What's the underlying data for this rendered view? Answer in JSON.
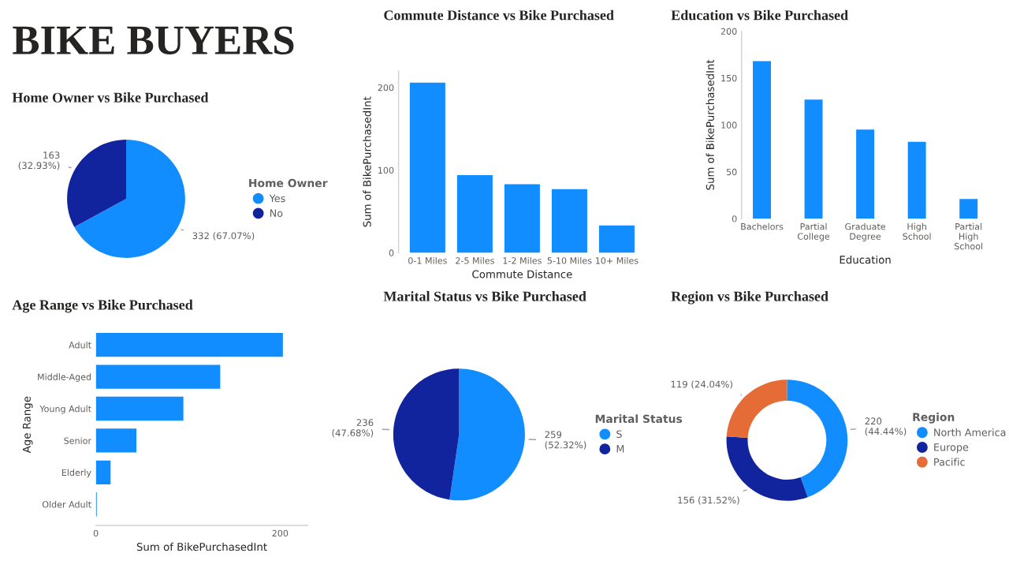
{
  "chart_data": [
    {
      "type": "other",
      "title": "BIKE BUYERS"
    },
    {
      "type": "pie",
      "title": "Home Owner vs Bike Purchased",
      "legend_title": "Home Owner",
      "legend": "right",
      "categories": [
        "Yes",
        "No"
      ],
      "values": [
        332,
        163
      ],
      "colors": [
        "#118dff",
        "#12239e"
      ],
      "value_labels": [
        "332 (67.07%)",
        "163\n(32.93%)"
      ]
    },
    {
      "type": "bar",
      "title": "Commute Distance vs Bike Purchased",
      "xlabel": "Commute Distance",
      "ylabel": "Sum of BikePurchasedInt",
      "categories": [
        "0-1 Miles",
        "2-5 Miles",
        "1-2 Miles",
        "5-10 Miles",
        "10+ Miles"
      ],
      "values": [
        206,
        94,
        83,
        77,
        33
      ],
      "color": "#118dff",
      "ylim": [
        0,
        220
      ],
      "yticks": [
        0,
        100,
        200
      ],
      "grid": false
    },
    {
      "type": "bar",
      "title": "Education vs Bike Purchased",
      "xlabel": "Education",
      "ylabel": "Sum of BikePurchasedInt",
      "categories": [
        "Bachelors",
        "Partial\nCollege",
        "Graduate\nDegree",
        "High\nSchool",
        "Partial\nHigh\nSchool"
      ],
      "values": [
        168,
        127,
        95,
        82,
        21
      ],
      "color": "#118dff",
      "ylim": [
        0,
        200
      ],
      "yticks": [
        0,
        50,
        100,
        150,
        200
      ],
      "grid": false
    },
    {
      "type": "bar",
      "orientation": "horizontal",
      "title": "Age Range vs Bike Purchased",
      "xlabel": "Sum of BikePurchasedInt",
      "ylabel": "Age Range",
      "categories": [
        "Adult",
        "Middle-Aged",
        "Young Adult",
        "Senior",
        "Elderly",
        "Older Adult"
      ],
      "values": [
        203,
        135,
        95,
        44,
        16,
        1
      ],
      "color": "#118dff",
      "xlim": [
        0,
        230
      ],
      "xticks": [
        0,
        200
      ],
      "grid": false
    },
    {
      "type": "pie",
      "title": "Marital Status vs Bike Purchased",
      "legend_title": "Marital Status",
      "legend": "right",
      "categories": [
        "S",
        "M"
      ],
      "values": [
        259,
        236
      ],
      "colors": [
        "#118dff",
        "#12239e"
      ],
      "value_labels": [
        "259\n(52.32%)",
        "236\n(47.68%)"
      ]
    },
    {
      "type": "donut",
      "title": "Region vs Bike Purchased",
      "legend_title": "Region",
      "legend": "right",
      "categories": [
        "North America",
        "Europe",
        "Pacific"
      ],
      "values": [
        220,
        156,
        119
      ],
      "colors": [
        "#118dff",
        "#12239e",
        "#e66c37"
      ],
      "value_labels": [
        "220\n(44.44%)",
        "156 (31.52%)",
        "119 (24.04%)"
      ]
    }
  ]
}
